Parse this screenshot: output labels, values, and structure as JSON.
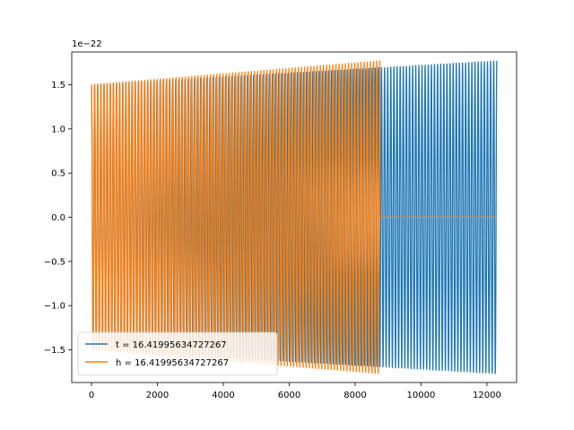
{
  "chart_data": {
    "type": "line",
    "title": "",
    "xlabel": "",
    "ylabel": "",
    "offset_label": "1e−22",
    "x_ticks": [
      0,
      2000,
      4000,
      6000,
      8000,
      10000,
      12000
    ],
    "x_tick_labels": [
      "0",
      "2000",
      "4000",
      "6000",
      "8000",
      "10000",
      "12000"
    ],
    "y_ticks": [
      -1.5,
      -1.0,
      -0.5,
      0.0,
      0.5,
      1.0,
      1.5
    ],
    "y_tick_labels": [
      "−1.5",
      "−1.0",
      "−0.5",
      "0.0",
      "0.5",
      "1.0",
      "1.5"
    ],
    "xlim": [
      -600,
      12900
    ],
    "ylim": [
      -1.87,
      1.87
    ],
    "grid": false,
    "legend_position": "lower-left",
    "series": [
      {
        "name": "t = 16.41995634727267",
        "color": "#1f77b4",
        "x_start": 0,
        "x_end": 12300,
        "amplitude_start": 1.5,
        "amplitude_end": 1.77,
        "oscillation_cycles": 130
      },
      {
        "name": "h = 16.41995634727267",
        "color": "#ff7f0e",
        "x_start": 0,
        "x_end": 8750,
        "amplitude_start": 1.5,
        "amplitude_end": 1.77,
        "oscillation_cycles": 92,
        "flat_after_end": 12300,
        "flat_value": 0.0
      }
    ]
  }
}
